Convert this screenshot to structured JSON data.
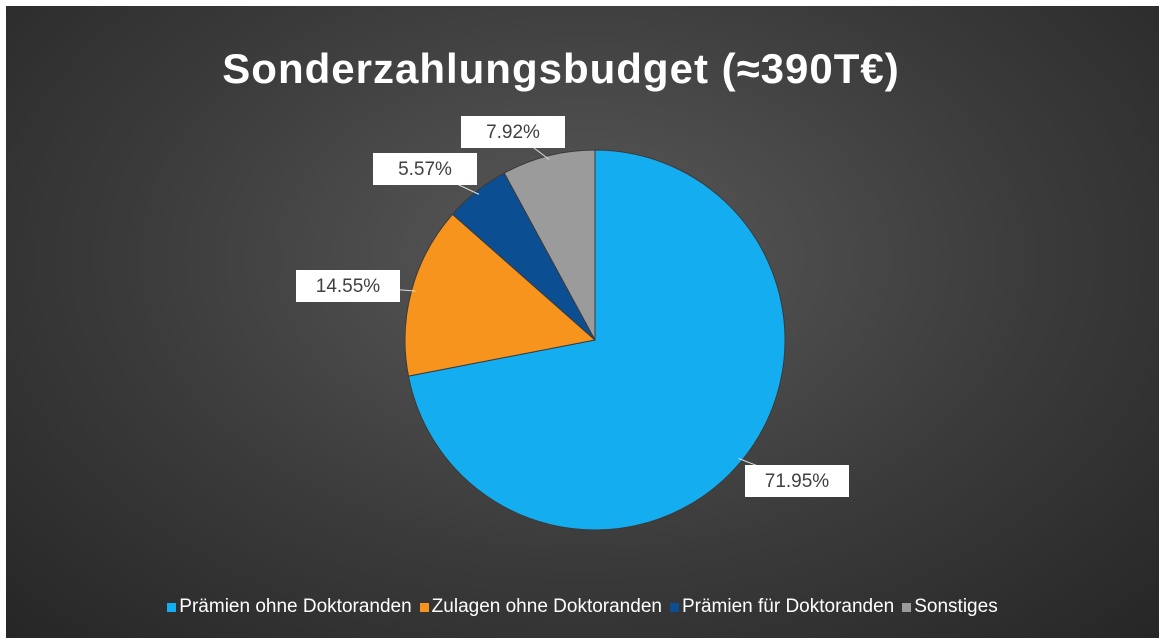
{
  "chart_data": {
    "type": "pie",
    "title": "Sonderzahlungsbudget (≈390T€)",
    "categories": [
      "Prämien ohne Doktoranden",
      "Zulagen ohne Doktoranden",
      "Prämien für Doktoranden",
      "Sonstiges"
    ],
    "values": [
      71.95,
      14.55,
      5.57,
      7.92
    ],
    "value_labels": [
      "71.95%",
      "14.55%",
      "5.57%",
      "7.92%"
    ],
    "colors": [
      "#14aef0",
      "#f7941d",
      "#0b4f92",
      "#9b9b9b"
    ],
    "legend": "bottom"
  }
}
